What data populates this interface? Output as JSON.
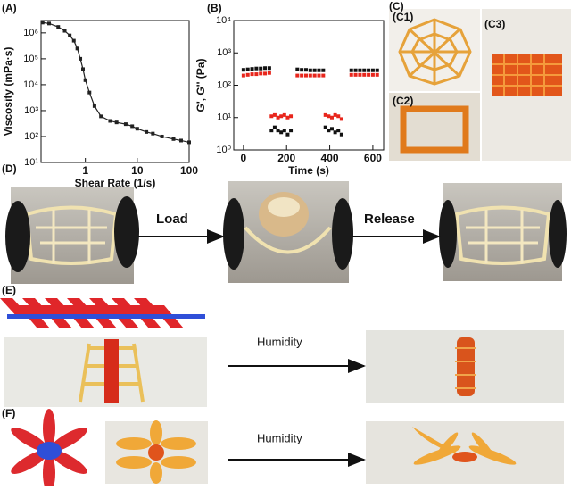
{
  "chart_data": [
    {
      "type": "line",
      "panel_label": "(A)",
      "xlabel": "Shear Rate (1/s)",
      "ylabel": "Viscosity (mPa·s)",
      "color": "#222",
      "xlog": true,
      "ylog": true,
      "xlim": [
        0.14,
        100
      ],
      "ylim": [
        10,
        3000000
      ],
      "xticks": [
        1,
        10,
        100
      ],
      "yticks": [
        {
          "value": 10,
          "label": "10¹"
        },
        {
          "value": 100,
          "label": "10²"
        },
        {
          "value": 1000,
          "label": "10³"
        },
        {
          "value": 10000,
          "label": "10⁴"
        },
        {
          "value": 100000,
          "label": "10⁵"
        },
        {
          "value": 1000000,
          "label": "10⁶"
        }
      ],
      "x": [
        0.15,
        0.2,
        0.3,
        0.4,
        0.5,
        0.6,
        0.7,
        0.8,
        0.9,
        1.0,
        1.2,
        1.5,
        2,
        3,
        4,
        6,
        8,
        10,
        15,
        20,
        30,
        50,
        70,
        100
      ],
      "values": [
        2500000,
        2300000,
        1700000,
        1200000,
        800000,
        500000,
        250000,
        100000,
        40000,
        15000,
        5000,
        1500,
        600,
        400,
        350,
        300,
        250,
        200,
        150,
        130,
        100,
        80,
        70,
        60
      ]
    },
    {
      "type": "scatter",
      "panel_label": "(B)",
      "xlabel": "Time (s)",
      "ylabel": "G', G'' (Pa)",
      "xlog": false,
      "ylog": true,
      "xlim": [
        -45,
        650
      ],
      "ylim": [
        1,
        10000
      ],
      "xticks": [
        0,
        200,
        400,
        600
      ],
      "yticks": [
        {
          "value": 1,
          "label": "10⁰"
        },
        {
          "value": 10,
          "label": "10¹"
        },
        {
          "value": 100,
          "label": "10²"
        },
        {
          "value": 1000,
          "label": "10³"
        },
        {
          "value": 10000,
          "label": "10⁴"
        }
      ],
      "series": [
        {
          "color": "#111",
          "x": [
            0,
            20,
            40,
            60,
            80,
            100,
            120,
            250,
            270,
            290,
            310,
            330,
            350,
            370,
            500,
            520,
            540,
            560,
            580,
            600,
            620,
            130,
            145,
            160,
            175,
            190,
            205,
            220,
            380,
            395,
            410,
            425,
            440,
            455
          ],
          "values": [
            300,
            310,
            320,
            330,
            330,
            340,
            340,
            310,
            300,
            300,
            290,
            290,
            290,
            290,
            290,
            290,
            290,
            290,
            290,
            290,
            290,
            4,
            5,
            4,
            3.5,
            4,
            3,
            4,
            5,
            4,
            4.5,
            3.5,
            4,
            3
          ]
        },
        {
          "color": "#e8261c",
          "x": [
            0,
            20,
            40,
            60,
            80,
            100,
            120,
            250,
            270,
            290,
            310,
            330,
            350,
            370,
            500,
            520,
            540,
            560,
            580,
            600,
            620,
            130,
            145,
            160,
            175,
            190,
            205,
            220,
            380,
            395,
            410,
            425,
            440,
            455
          ],
          "values": [
            200,
            210,
            220,
            220,
            230,
            230,
            240,
            200,
            200,
            200,
            200,
            200,
            200,
            200,
            210,
            210,
            210,
            210,
            210,
            210,
            210,
            11,
            12,
            10,
            11,
            12,
            10,
            11,
            12,
            11,
            10,
            12,
            11,
            9
          ]
        }
      ]
    }
  ],
  "labels": {
    "c": "(C)",
    "c1": "(C1)",
    "c2": "(C2)",
    "c3": "(C3)",
    "d": "(D)",
    "load": "Load",
    "release": "Release",
    "e": "(E)",
    "humidity_e": "Humidity",
    "f": "(F)",
    "humidity_f": "Humidity"
  }
}
